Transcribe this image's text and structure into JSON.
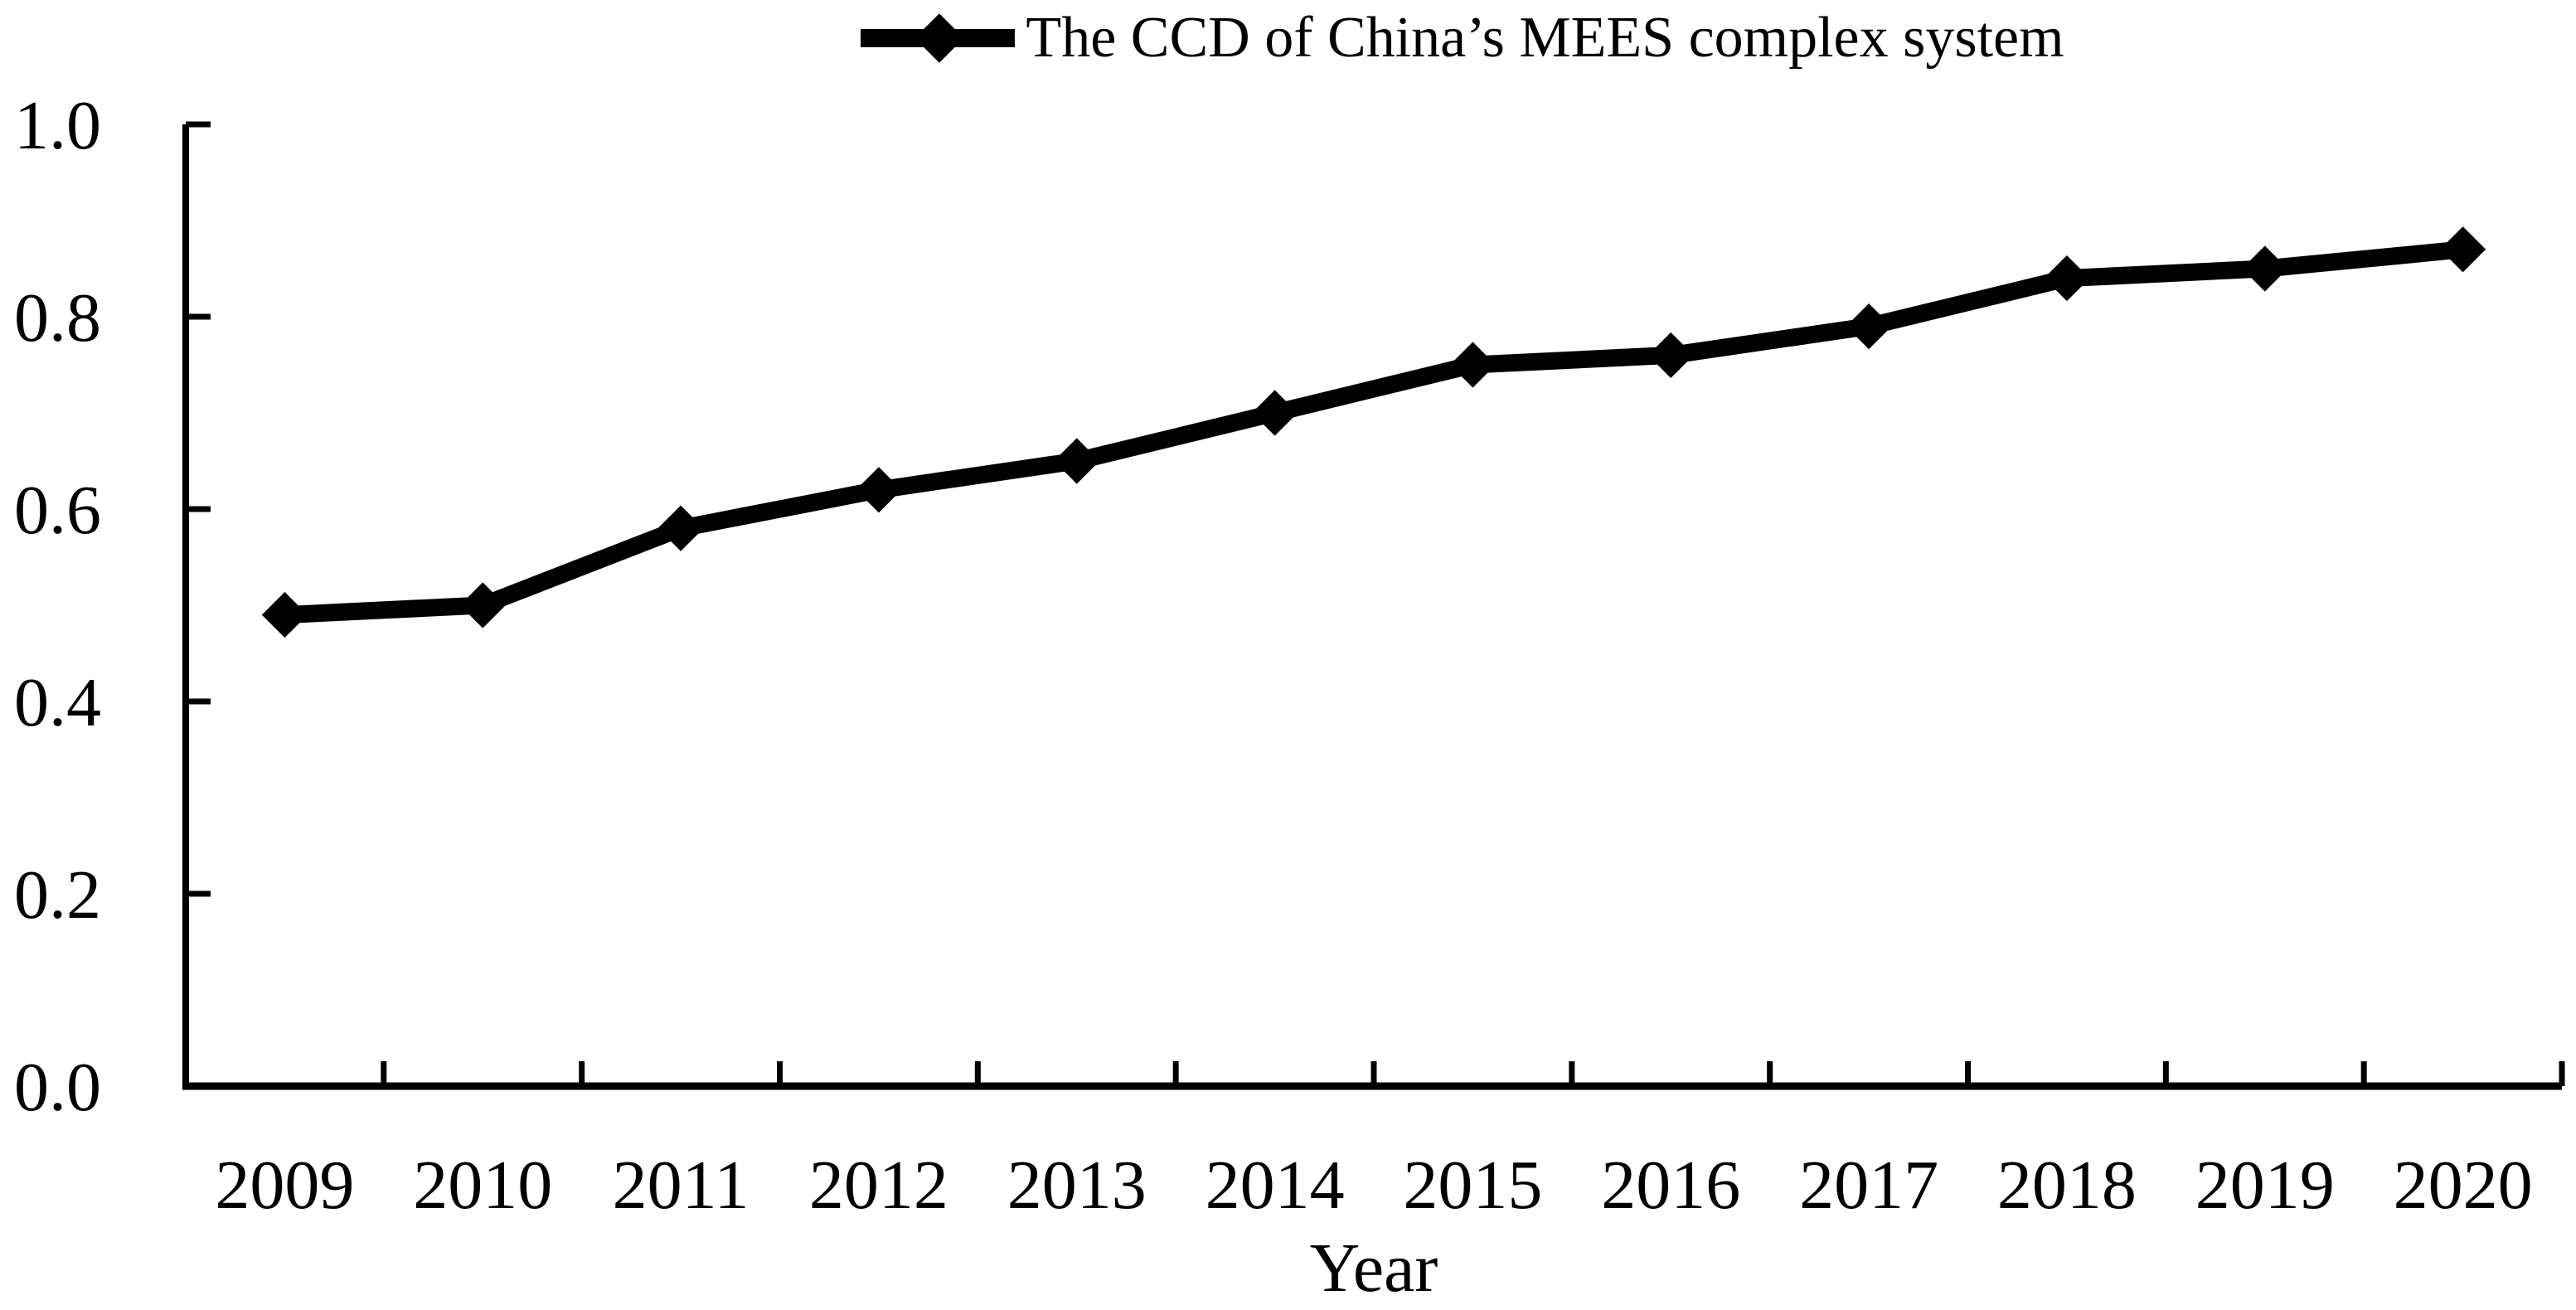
{
  "chart_data": {
    "type": "line",
    "categories": [
      "2009",
      "2010",
      "2011",
      "2012",
      "2013",
      "2014",
      "2015",
      "2016",
      "2017",
      "2018",
      "2019",
      "2020"
    ],
    "series": [
      {
        "name": "The CCD of China’s MEES complex system",
        "values": [
          0.49,
          0.5,
          0.58,
          0.62,
          0.65,
          0.7,
          0.75,
          0.76,
          0.79,
          0.84,
          0.85,
          0.87
        ]
      }
    ],
    "title": "",
    "xlabel": "Year",
    "ylabel": "",
    "ylim": [
      0,
      1
    ],
    "y_tick_labels": [
      "0.0",
      "0.2",
      "0.4",
      "0.6",
      "0.8",
      "1.0"
    ],
    "grid": false,
    "legend_position": "top-center",
    "marker": "diamond",
    "colors": {
      "series": "#000000",
      "text": "#000000",
      "background": "#ffffff"
    }
  }
}
